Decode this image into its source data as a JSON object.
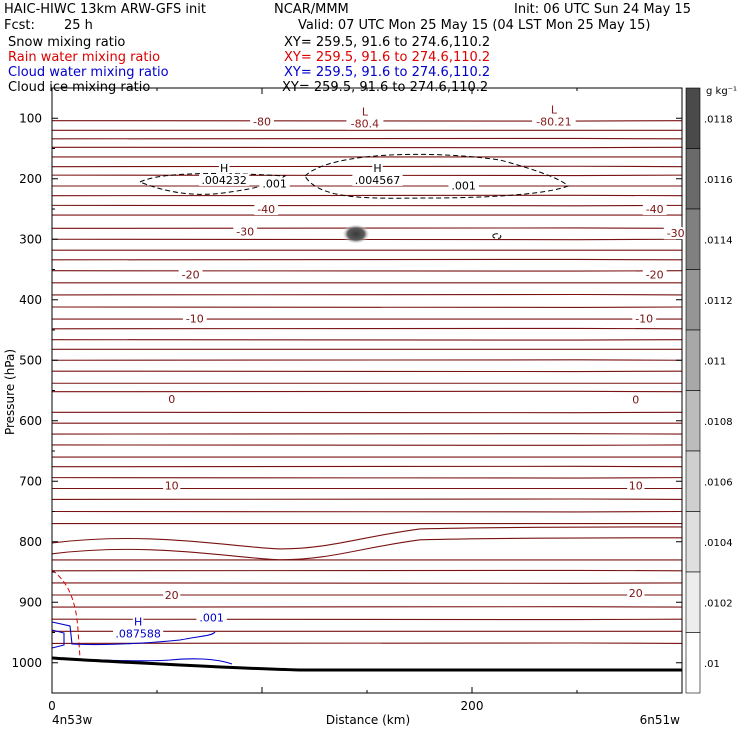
{
  "header": {
    "line1_left": "HAIC-HIWC 13km ARW-GFS init",
    "line1_mid": "NCAR/MMM",
    "line1_right": "Init: 06 UTC Sun 24 May 15",
    "fcst_label": "Fcst:",
    "fcst_value": "25 h",
    "valid": "Valid: 07 UTC Mon 25 May 15 (04 LST Mon 25 May 15)",
    "fields": [
      {
        "name": "Snow mixing ratio",
        "xy": "XY= 259.5, 91.6 to 274.6,110.2",
        "color": "#000000"
      },
      {
        "name": "Rain water mixing ratio",
        "xy": "XY= 259.5, 91.6 to 274.6,110.2",
        "color": "#dd0000"
      },
      {
        "name": "Cloud water mixing ratio",
        "xy": "XY= 259.5, 91.6 to 274.6,110.2",
        "color": "#0000cc"
      },
      {
        "name": "Cloud ice mixing ratio",
        "xy": "XY= 259.5, 91.6 to 274.6,110.2",
        "color": "#000000"
      }
    ]
  },
  "colorbar": {
    "unit": "g kg⁻¹",
    "labels": [
      ".0118",
      ".0116",
      ".0114",
      ".0112",
      ".011",
      ".0108",
      ".0106",
      ".0104",
      ".0102",
      ".01"
    ]
  },
  "chart_data": {
    "type": "contour",
    "xlabel": "Distance (km)",
    "ylabel": "Pressure (hPa)",
    "x_ticks": [
      "0",
      "200"
    ],
    "x_tick_values": [
      0,
      200
    ],
    "xlim": [
      0,
      300
    ],
    "y_ticks": [
      "100",
      "200",
      "300",
      "400",
      "500",
      "600",
      "700",
      "800",
      "900",
      "1000"
    ],
    "y_tick_values": [
      100,
      200,
      300,
      400,
      500,
      600,
      700,
      800,
      900,
      1000
    ],
    "ylim": [
      50,
      1050
    ],
    "endpoints": {
      "left": "4n53w",
      "right": "6n51w"
    },
    "temperature_isotherm_labels": [
      {
        "text": "-80",
        "x": 100,
        "p": 110
      },
      {
        "text": "-40",
        "x": 102,
        "p": 255
      },
      {
        "text": "-40",
        "x": 287,
        "p": 255
      },
      {
        "text": "-30",
        "x": 92,
        "p": 292
      },
      {
        "text": "-30",
        "x": 297,
        "p": 295
      },
      {
        "text": "-20",
        "x": 66,
        "p": 363
      },
      {
        "text": "-20",
        "x": 287,
        "p": 363
      },
      {
        "text": "-10",
        "x": 68,
        "p": 436
      },
      {
        "text": "-10",
        "x": 282,
        "p": 436
      },
      {
        "text": "0",
        "x": 57,
        "p": 569
      },
      {
        "text": "0",
        "x": 278,
        "p": 570
      },
      {
        "text": "10",
        "x": 57,
        "p": 712
      },
      {
        "text": "10",
        "x": 278,
        "p": 712
      },
      {
        "text": "20",
        "x": 57,
        "p": 893
      },
      {
        "text": "20",
        "x": 278,
        "p": 890
      }
    ],
    "extrema": [
      {
        "type": "L",
        "value": "-80.4",
        "x": 149,
        "p": 104,
        "color": "#8b1a1a"
      },
      {
        "type": "L",
        "value": "-80.21",
        "x": 239,
        "p": 100,
        "color": "#8b1a1a"
      },
      {
        "type": "H",
        "value": ".004232",
        "x": 82,
        "p": 197,
        "color": "#000000"
      },
      {
        "type": "H",
        "value": ".004567",
        "x": 155,
        "p": 197,
        "color": "#000000"
      },
      {
        "type": "H",
        "value": ".087588",
        "x": 41,
        "p": 947,
        "color": "#0000cc"
      }
    ],
    "contour_labels": [
      {
        "text": ".001",
        "x": 106,
        "p": 213,
        "color": "#000000"
      },
      {
        "text": ".001",
        "x": 196,
        "p": 216,
        "color": "#000000"
      },
      {
        "text": ".001",
        "x": 76,
        "p": 930,
        "color": "#0000cc"
      }
    ]
  }
}
